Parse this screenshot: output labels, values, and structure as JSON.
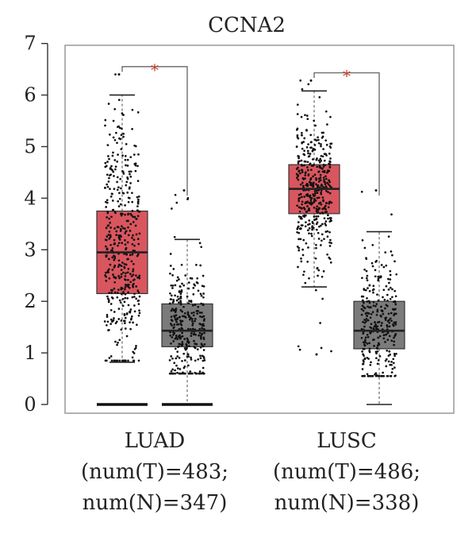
{
  "chart_data": {
    "type": "boxplot",
    "title": "CCNA2",
    "xlabel": "",
    "ylabel": "",
    "ylim": [
      0,
      7
    ],
    "yticks": [
      0,
      1,
      2,
      3,
      4,
      5,
      6,
      7
    ],
    "grid": false,
    "legend": "none",
    "groups": [
      {
        "name": "LUAD",
        "label_lines": [
          "LUAD",
          "(num(T)=483;",
          "num(N)=347)"
        ],
        "significance": "*",
        "boxes": [
          {
            "name": "T",
            "n": 483,
            "color": "#d9565f",
            "q1": 2.15,
            "median": 2.95,
            "q3": 3.75,
            "whisker_low": 0.82,
            "whisker_high": 6.0,
            "jitter_min": 0.85,
            "jitter_max": 6.4,
            "zeros": true
          },
          {
            "name": "N",
            "n": 347,
            "color": "#7b7b7b",
            "q1": 1.12,
            "median": 1.43,
            "q3": 1.95,
            "whisker_low": 0.0,
            "whisker_high": 3.2,
            "jitter_min": 0.6,
            "jitter_max": 4.15,
            "zeros": true
          }
        ]
      },
      {
        "name": "LUSC",
        "label_lines": [
          "LUSC",
          "(num(T)=486;",
          "num(N)=338)"
        ],
        "significance": "*",
        "boxes": [
          {
            "name": "T",
            "n": 486,
            "color": "#d9565f",
            "q1": 3.7,
            "median": 4.18,
            "q3": 4.65,
            "whisker_low": 2.28,
            "whisker_high": 6.08,
            "jitter_min": 0.97,
            "jitter_max": 6.28,
            "zeros": false
          },
          {
            "name": "N",
            "n": 338,
            "color": "#7b7b7b",
            "q1": 1.08,
            "median": 1.43,
            "q3": 2.0,
            "whisker_low": 0.0,
            "whisker_high": 3.35,
            "jitter_min": 0.55,
            "jitter_max": 4.15,
            "zeros": false
          }
        ]
      }
    ]
  }
}
